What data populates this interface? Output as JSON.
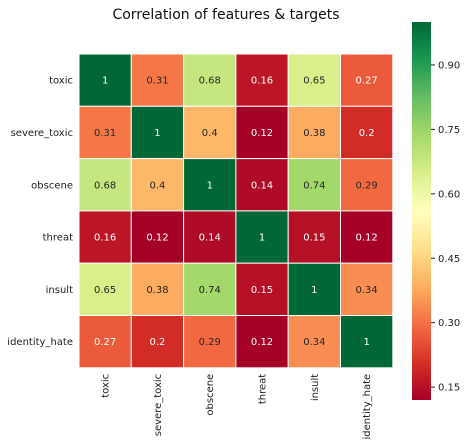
{
  "chart_data": {
    "type": "heatmap",
    "title": "Correlation of features & targets",
    "rows": [
      "toxic",
      "severe_toxic",
      "obscene",
      "threat",
      "insult",
      "identity_hate"
    ],
    "columns": [
      "toxic",
      "severe_toxic",
      "obscene",
      "threat",
      "insult",
      "identity_hate"
    ],
    "values": [
      [
        1,
        0.31,
        0.68,
        0.16,
        0.65,
        0.27
      ],
      [
        0.31,
        1,
        0.4,
        0.12,
        0.38,
        0.2
      ],
      [
        0.68,
        0.4,
        1,
        0.14,
        0.74,
        0.29
      ],
      [
        0.16,
        0.12,
        0.14,
        1,
        0.15,
        0.12
      ],
      [
        0.65,
        0.38,
        0.74,
        0.15,
        1,
        0.34
      ],
      [
        0.27,
        0.2,
        0.29,
        0.12,
        0.34,
        1
      ]
    ],
    "colormap": "RdYlGn",
    "color_range": [
      0.12,
      1.0
    ],
    "colorbar_ticks": [
      "0.15",
      "0.30",
      "0.45",
      "0.60",
      "0.75",
      "0.90"
    ],
    "colorbar_tick_values": [
      0.15,
      0.3,
      0.45,
      0.6,
      0.75,
      0.9
    ],
    "grid_lines": true
  }
}
